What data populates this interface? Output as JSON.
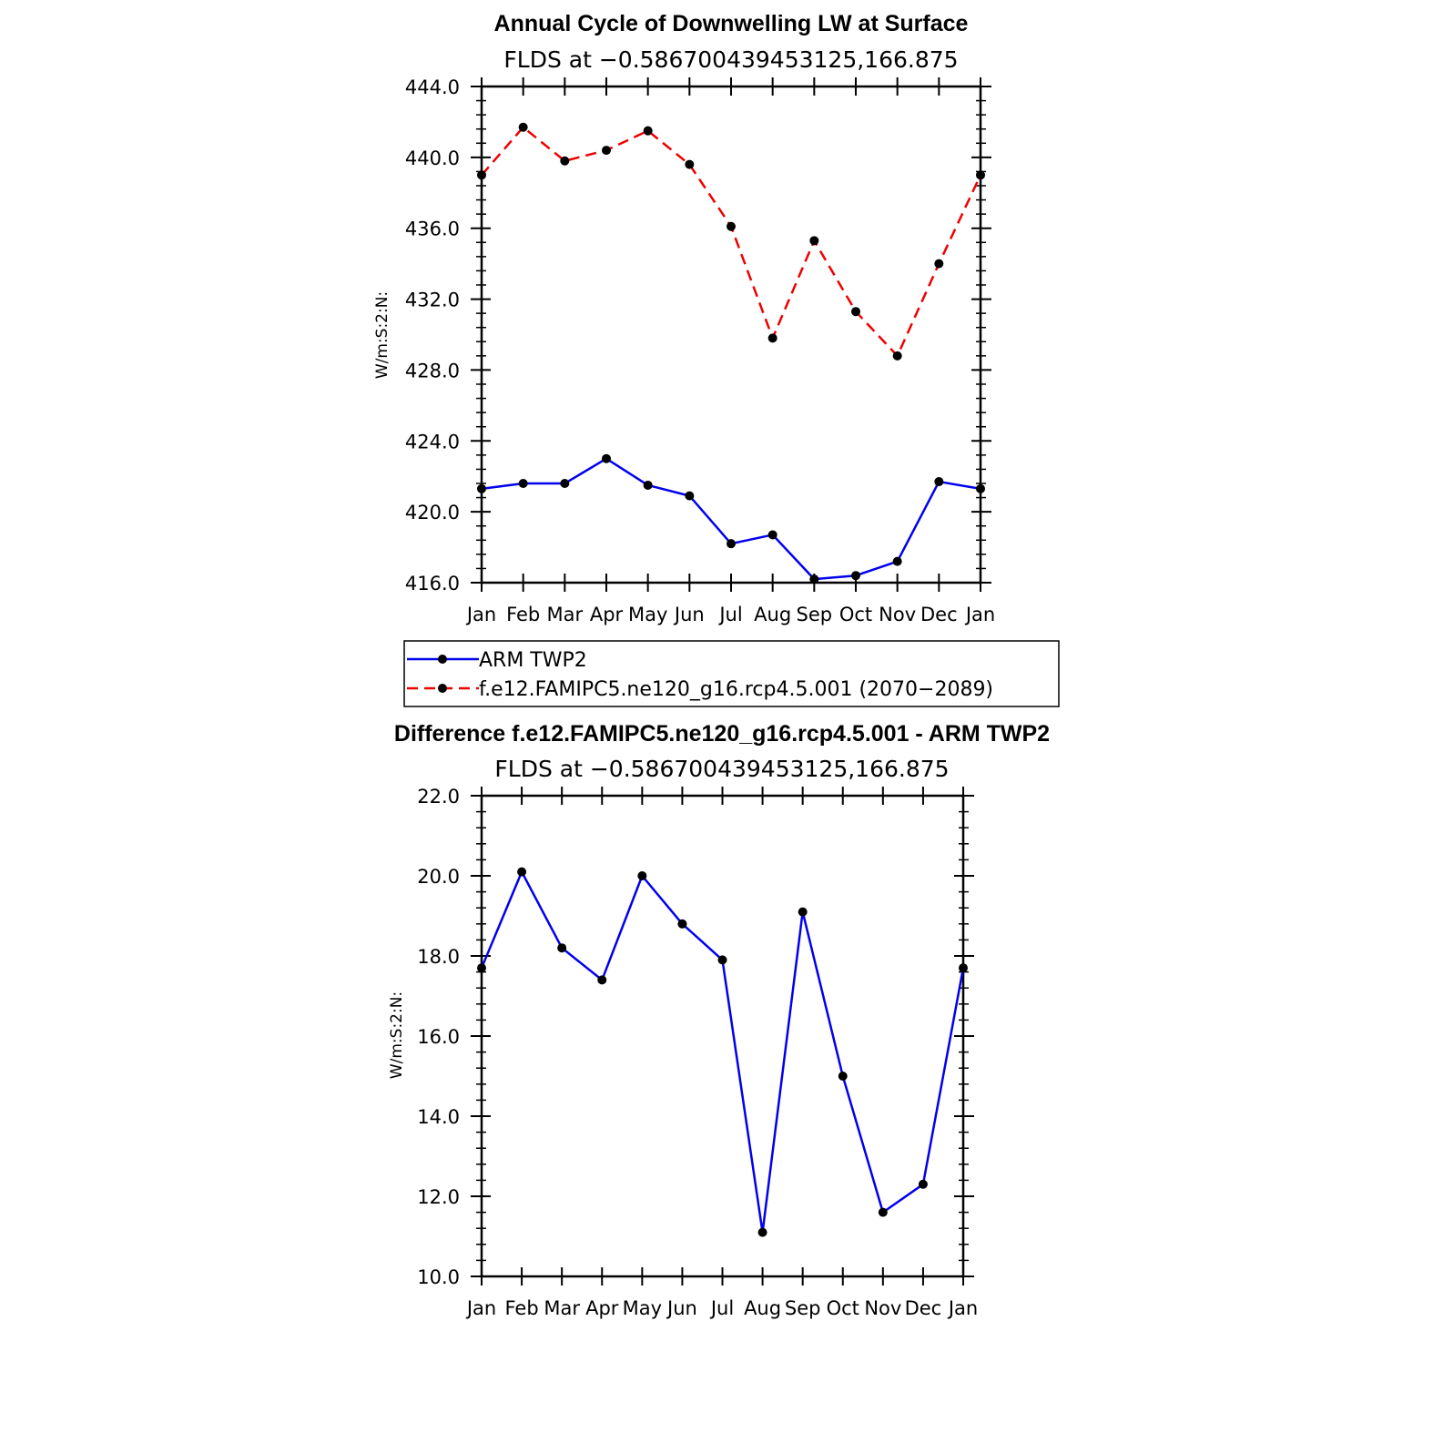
{
  "colors": {
    "obs": "#0000ee",
    "model": "#ee0000",
    "diff": "#0000ee",
    "marker": "#000000",
    "axis": "#000000"
  },
  "legend": {
    "placement": "between-panels",
    "entries": [
      "ARM TWP2",
      "f.e12.FAMIPC5.ne120_g16.rcp4.5.001 (2070−2089)"
    ]
  },
  "chart_data": [
    {
      "type": "line",
      "title": "Annual Cycle of Downwelling LW at Surface",
      "subtitle": "FLDS at −0.586700439453125,166.875",
      "ylabel": "W/m:S:2:N:",
      "xlabel": "",
      "categories": [
        "Jan",
        "Feb",
        "Mar",
        "Apr",
        "May",
        "Jun",
        "Jul",
        "Aug",
        "Sep",
        "Oct",
        "Nov",
        "Dec",
        "Jan"
      ],
      "ylim": [
        416,
        444
      ],
      "yticks": [
        "416.0",
        "420.0",
        "424.0",
        "428.0",
        "432.0",
        "436.0",
        "440.0",
        "444.0"
      ],
      "grid": false,
      "series": [
        {
          "name": "ARM TWP2",
          "style": "solid",
          "values": [
            421.3,
            421.6,
            421.6,
            423.0,
            421.5,
            420.9,
            418.2,
            418.7,
            416.2,
            416.4,
            417.2,
            421.7,
            421.3
          ]
        },
        {
          "name": "f.e12.FAMIPC5.ne120_g16.rcp4.5.001 (2070−2089)",
          "style": "dashed",
          "values": [
            439.0,
            441.7,
            439.8,
            440.4,
            441.5,
            439.6,
            436.1,
            429.8,
            435.3,
            431.3,
            428.8,
            434.0,
            439.0
          ]
        }
      ]
    },
    {
      "type": "line",
      "title": "Difference f.e12.FAMIPC5.ne120_g16.rcp4.5.001 - ARM TWP2",
      "subtitle": "FLDS at −0.586700439453125,166.875",
      "ylabel": "W/m:S:2:N:",
      "xlabel": "",
      "categories": [
        "Jan",
        "Feb",
        "Mar",
        "Apr",
        "May",
        "Jun",
        "Jul",
        "Aug",
        "Sep",
        "Oct",
        "Nov",
        "Dec",
        "Jan"
      ],
      "ylim": [
        10,
        22
      ],
      "yticks": [
        "10.0",
        "12.0",
        "14.0",
        "16.0",
        "18.0",
        "20.0",
        "22.0"
      ],
      "grid": false,
      "series": [
        {
          "style": "solid",
          "values": [
            17.7,
            20.1,
            18.2,
            17.4,
            20.0,
            18.8,
            17.9,
            11.1,
            19.1,
            15.0,
            11.6,
            12.3,
            17.7
          ]
        }
      ]
    }
  ]
}
